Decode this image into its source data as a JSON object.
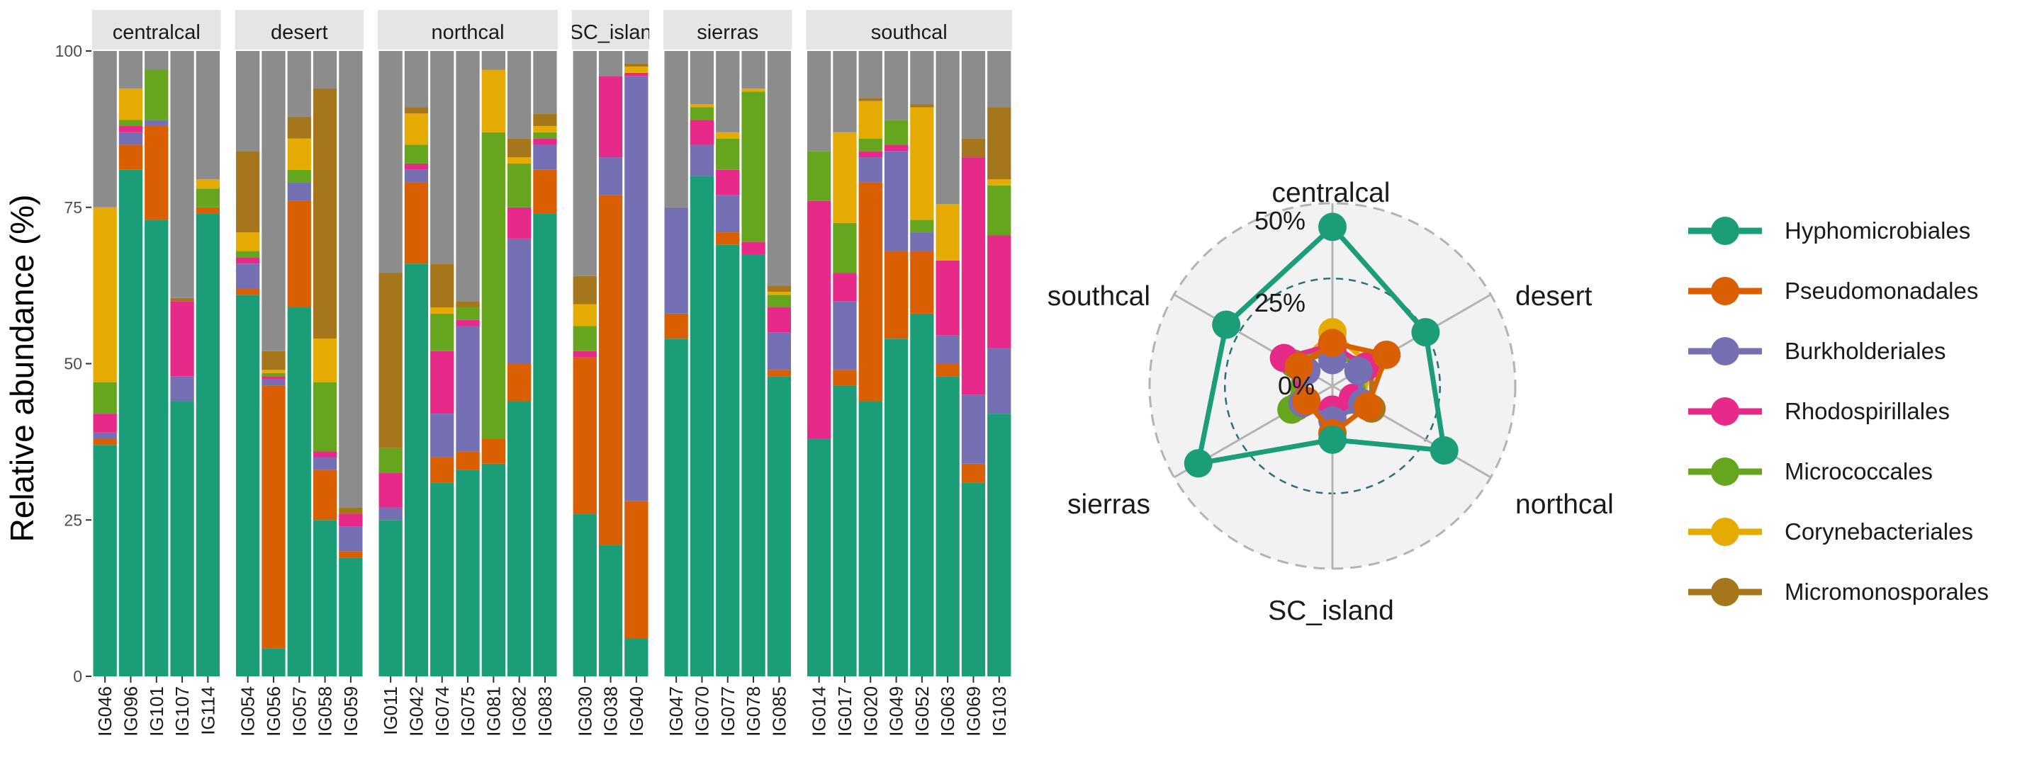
{
  "colors": {
    "Hyphomicrobiales": "#1b9e77",
    "Pseudomonadales": "#d95f02",
    "Burkholderiales": "#7570b3",
    "Rhodospirillales": "#e7298a",
    "Micrococcales": "#66a61e",
    "Corynebacteriales": "#e6ab02",
    "Micromonosporales": "#a6761d",
    "Other": "#8c8c8c",
    "strip": "#e5e5e5",
    "radar_bg": "#f2f2f2",
    "radar_grid": "#b3b3b3",
    "dashed_inner": "#2a6f7a",
    "dashed_outer": "#b3b3b3"
  },
  "chart_data": [
    {
      "type": "bar",
      "stacked": true,
      "ylabel": "Relative abundance (%)",
      "ylim": [
        0,
        100
      ],
      "yticks": [
        0,
        25,
        50,
        75,
        100
      ],
      "layers": [
        "Hyphomicrobiales",
        "Pseudomonadales",
        "Burkholderiales",
        "Rhodospirillales",
        "Micrococcales",
        "Corynebacteriales",
        "Micromonosporales",
        "Other"
      ],
      "facets": [
        {
          "label": "centralcal",
          "samples": [
            {
              "id": "IG046",
              "values": [
                37,
                1,
                1,
                3,
                5,
                28,
                0,
                25
              ]
            },
            {
              "id": "IG096",
              "values": [
                81,
                4,
                2,
                1,
                1,
                5,
                0,
                6
              ]
            },
            {
              "id": "IG101",
              "values": [
                73,
                15,
                1,
                0,
                8,
                0,
                0,
                3
              ]
            },
            {
              "id": "IG107",
              "values": [
                44,
                0,
                4,
                12,
                0,
                0,
                0.5,
                39.5
              ]
            },
            {
              "id": "IG114",
              "values": [
                74,
                1,
                0,
                0,
                3,
                1.5,
                0,
                20.5
              ]
            }
          ]
        },
        {
          "label": "desert",
          "samples": [
            {
              "id": "IG054",
              "values": [
                61,
                1,
                4,
                1,
                1,
                3,
                13,
                16
              ]
            },
            {
              "id": "IG056",
              "values": [
                4.5,
                42,
                1,
                0.5,
                0.5,
                0.5,
                3,
                48
              ]
            },
            {
              "id": "IG057",
              "values": [
                59,
                17,
                3,
                0,
                2,
                5,
                3.5,
                10.5
              ]
            },
            {
              "id": "IG058",
              "values": [
                25,
                8,
                2,
                1,
                11,
                7,
                40,
                6
              ]
            },
            {
              "id": "IG059",
              "values": [
                19,
                1,
                4,
                2,
                0,
                0,
                1,
                73
              ]
            }
          ]
        },
        {
          "label": "northcal",
          "samples": [
            {
              "id": "IG011",
              "values": [
                25,
                0,
                2,
                5.5,
                4,
                0,
                28,
                35.5
              ]
            },
            {
              "id": "IG042",
              "values": [
                66,
                13,
                2,
                1,
                3,
                5,
                1,
                9
              ]
            },
            {
              "id": "IG074",
              "values": [
                31,
                4,
                7,
                10,
                6,
                1,
                7,
                34
              ]
            },
            {
              "id": "IG075",
              "values": [
                33,
                3,
                20,
                1,
                2,
                0,
                1,
                40
              ]
            },
            {
              "id": "IG081",
              "values": [
                34,
                4,
                0,
                0,
                49,
                10,
                0,
                3
              ]
            },
            {
              "id": "IG082",
              "values": [
                44,
                6,
                20,
                5,
                7,
                1,
                3,
                14
              ]
            },
            {
              "id": "IG083",
              "values": [
                74,
                7,
                4,
                1,
                1,
                1,
                2,
                10
              ]
            }
          ]
        },
        {
          "label": "SC_island",
          "display_label": "SC_islan",
          "samples": [
            {
              "id": "IG030",
              "values": [
                26,
                25,
                0,
                1,
                4,
                3.5,
                4.5,
                36
              ]
            },
            {
              "id": "IG038",
              "values": [
                21,
                56,
                6,
                13,
                0,
                0,
                0,
                4
              ]
            },
            {
              "id": "IG040",
              "values": [
                6,
                22,
                68,
                0.5,
                0,
                1,
                0.5,
                2
              ]
            }
          ]
        },
        {
          "label": "sierras",
          "samples": [
            {
              "id": "IG047",
              "values": [
                54,
                4,
                17,
                0,
                0,
                0,
                0,
                25
              ]
            },
            {
              "id": "IG070",
              "values": [
                80,
                0,
                5,
                4,
                2,
                0.5,
                0,
                8.5
              ]
            },
            {
              "id": "IG077",
              "values": [
                69,
                2,
                6,
                4,
                5,
                1,
                0,
                13
              ]
            },
            {
              "id": "IG078",
              "values": [
                67.5,
                0,
                0,
                2,
                24,
                0.5,
                0,
                6
              ]
            },
            {
              "id": "IG085",
              "values": [
                48,
                1,
                6,
                4,
                2,
                0.5,
                1,
                37.5
              ]
            }
          ]
        },
        {
          "label": "southcal",
          "samples": [
            {
              "id": "IG014",
              "values": [
                38,
                0,
                0,
                38,
                8,
                0,
                0,
                16
              ]
            },
            {
              "id": "IG017",
              "values": [
                46.5,
                2.5,
                11,
                4.5,
                8,
                14.5,
                0,
                13
              ]
            },
            {
              "id": "IG020",
              "values": [
                44,
                35,
                4,
                1,
                2,
                6,
                0.5,
                7.5
              ]
            },
            {
              "id": "IG049",
              "values": [
                54,
                14,
                16,
                1,
                4,
                0,
                0,
                11
              ]
            },
            {
              "id": "IG052",
              "values": [
                58,
                10,
                3,
                0,
                2,
                18,
                0.5,
                8.5
              ]
            },
            {
              "id": "IG063",
              "values": [
                48,
                2,
                4.5,
                12,
                0,
                9,
                0,
                24.5
              ]
            },
            {
              "id": "IG069",
              "values": [
                31,
                3,
                11,
                38,
                0,
                0,
                3,
                14
              ]
            },
            {
              "id": "IG103",
              "values": [
                42,
                0,
                10.5,
                18,
                8,
                1,
                11.5,
                9
              ]
            }
          ]
        }
      ]
    },
    {
      "type": "radar",
      "axes": [
        "centralcal",
        "desert",
        "northcal",
        "SC_island",
        "sierras",
        "southcal"
      ],
      "rmin": -25,
      "rmax": 60,
      "grid_labels": [
        {
          "text": "50%",
          "value": 50
        },
        {
          "text": "25%",
          "value": 25
        },
        {
          "text": "0%",
          "value": 0
        }
      ],
      "series": [
        {
          "name": "Hyphomicrobiales",
          "values": [
            49,
            25,
            35,
            0,
            47,
            32
          ]
        },
        {
          "name": "Pseudomonadales",
          "values": [
            -5,
            4,
            -6,
            -3,
            -11,
            -7
          ]
        },
        {
          "name": "Burkholderiales",
          "values": [
            -13,
            -11,
            -9,
            -9,
            -9,
            -11
          ]
        },
        {
          "name": "Rhodospirillales",
          "values": [
            -6,
            -7,
            -14,
            -14,
            -11,
            1
          ]
        },
        {
          "name": "Micrococcales",
          "values": [
            -5,
            -11,
            -6,
            -13,
            -3,
            -5
          ]
        },
        {
          "name": "Corynebacteriales",
          "values": [
            0,
            -5,
            -9,
            -10,
            -10,
            -6
          ]
        },
        {
          "name": "Micromonosporales",
          "values": [
            -9,
            -4,
            -4,
            -12,
            -6,
            -4
          ]
        }
      ],
      "legend": {
        "position": "right",
        "entries": [
          "Hyphomicrobiales",
          "Pseudomonadales",
          "Burkholderiales",
          "Rhodospirillales",
          "Micrococcales",
          "Corynebacteriales",
          "Micromonosporales"
        ]
      }
    }
  ]
}
